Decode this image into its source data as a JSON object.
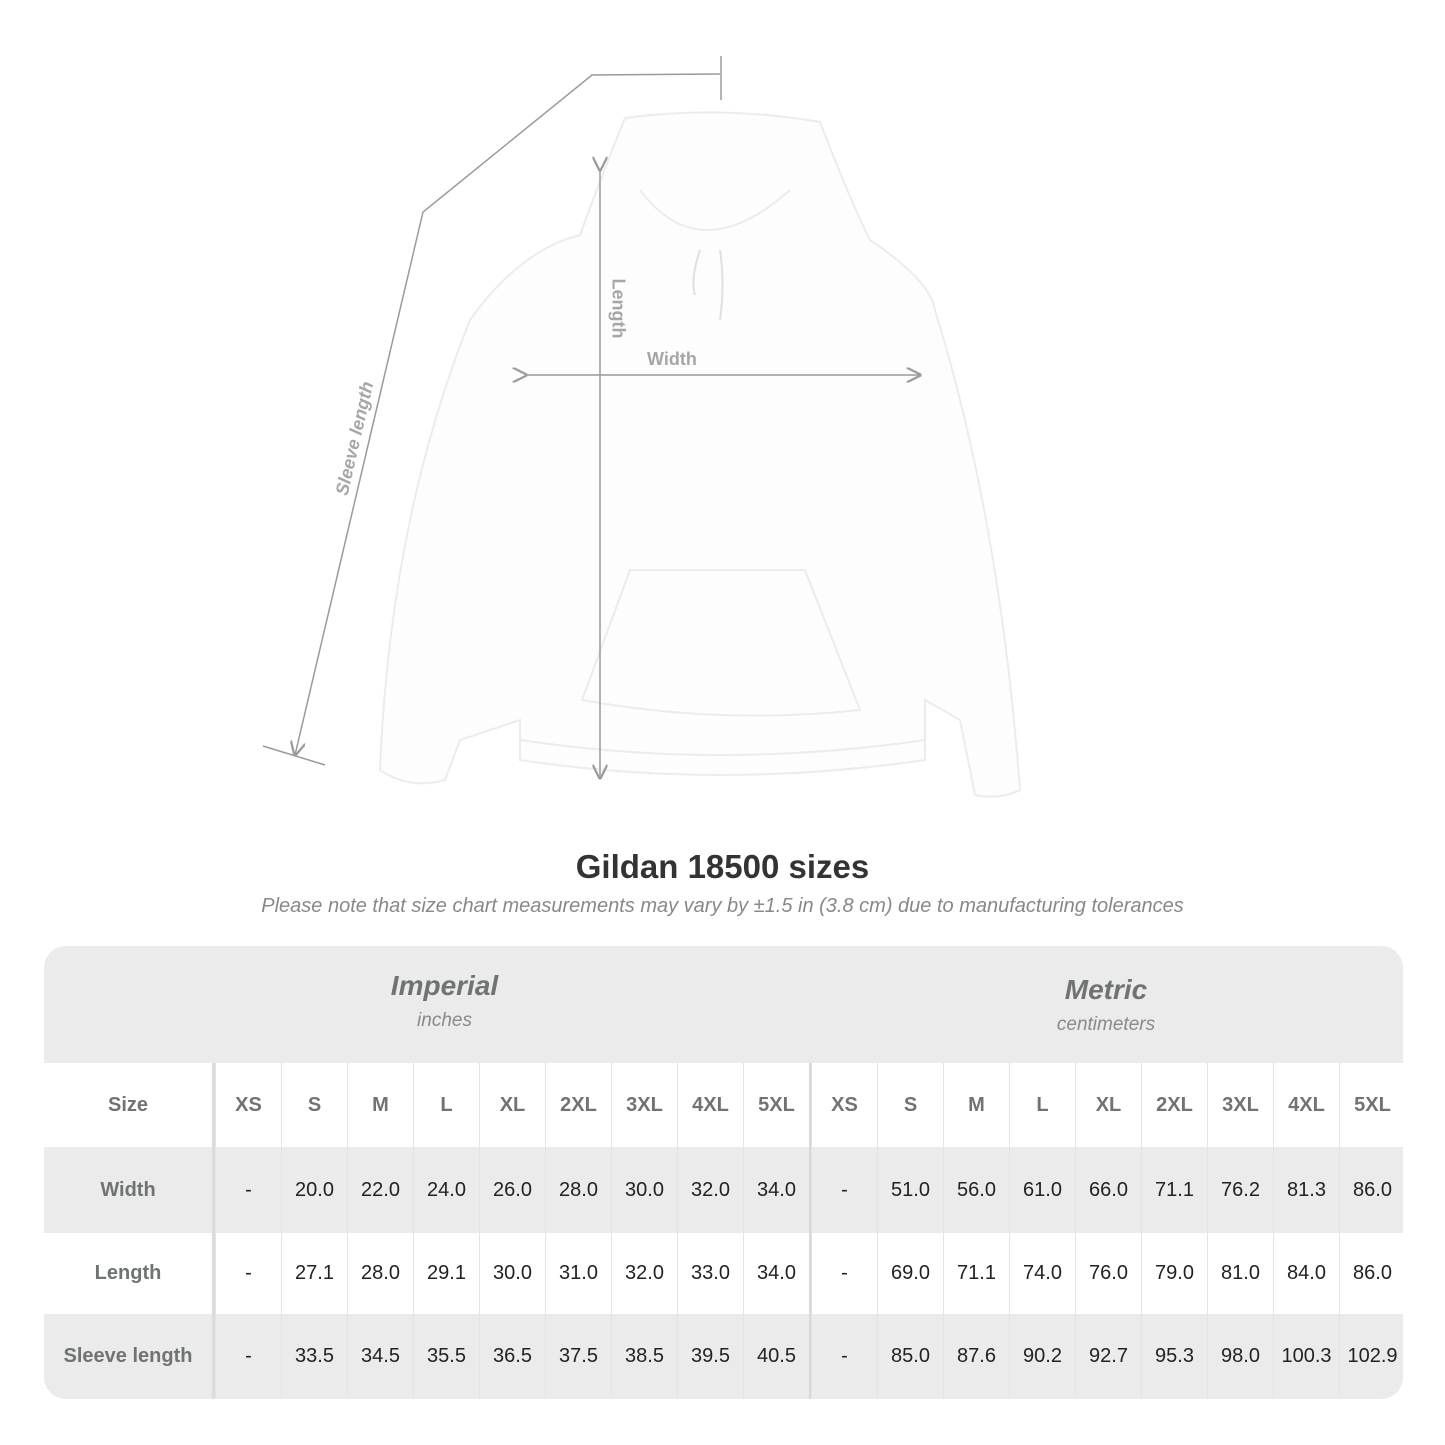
{
  "diagram": {
    "labels": {
      "sleeve": "Sleeve length",
      "length": "Length",
      "width": "Width"
    }
  },
  "title": "Gildan 18500 sizes",
  "subtitle": "Please note that size chart measurements may vary by ±1.5 in (3.8 cm) due to manufacturing tolerances",
  "table": {
    "imperial": {
      "name": "Imperial",
      "unit": "inches"
    },
    "metric": {
      "name": "Metric",
      "unit": "centimeters"
    },
    "size_label": "Size",
    "sizes": [
      "XS",
      "S",
      "M",
      "L",
      "XL",
      "2XL",
      "3XL",
      "4XL",
      "5XL"
    ],
    "rows": [
      {
        "label": "Width",
        "imperial": [
          "-",
          "20.0",
          "22.0",
          "24.0",
          "26.0",
          "28.0",
          "30.0",
          "32.0",
          "34.0"
        ],
        "metric": [
          "-",
          "51.0",
          "56.0",
          "61.0",
          "66.0",
          "71.1",
          "76.2",
          "81.3",
          "86.0"
        ]
      },
      {
        "label": "Length",
        "imperial": [
          "-",
          "27.1",
          "28.0",
          "29.1",
          "30.0",
          "31.0",
          "32.0",
          "33.0",
          "34.0"
        ],
        "metric": [
          "-",
          "69.0",
          "71.1",
          "74.0",
          "76.0",
          "79.0",
          "81.0",
          "84.0",
          "86.0"
        ]
      },
      {
        "label": "Sleeve length",
        "imperial": [
          "-",
          "33.5",
          "34.5",
          "35.5",
          "36.5",
          "37.5",
          "38.5",
          "39.5",
          "40.5"
        ],
        "metric": [
          "-",
          "85.0",
          "87.6",
          "90.2",
          "92.7",
          "95.3",
          "98.0",
          "100.3",
          "102.9"
        ]
      }
    ]
  },
  "colors": {
    "header_text": "#6f7374",
    "band": "#ebebeb",
    "measure_line": "#9a9a9a"
  }
}
